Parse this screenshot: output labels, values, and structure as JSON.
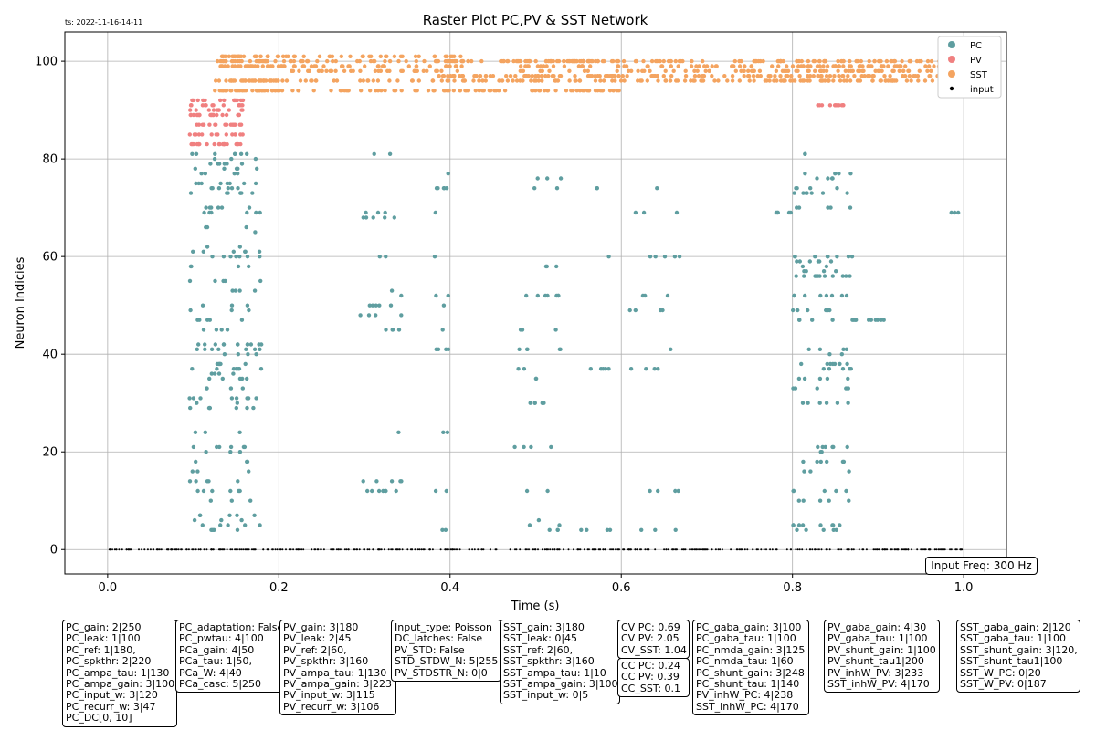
{
  "timestamp": "ts: 2022-11-16-14-11",
  "input_freq": "Input Freq: 300 Hz",
  "param_boxes": [
    [
      "PC_gain: 2|250",
      "PC_leak: 1|100",
      "PC_ref: 1|180,",
      "PC_spkthr: 2|220",
      "PC_ampa_tau: 1|130",
      "PC_ampa_gain: 3|100",
      "PC_input_w: 3|120",
      "PC_recurr_w: 3|47",
      "PC_DC[0, 10]"
    ],
    [
      "PC_adaptation: False",
      "PC_pwtau: 4|100",
      "PCa_gain: 4|50",
      "PCa_tau: 1|50,",
      "PCa_W: 4|40",
      "PCa_casc: 5|250"
    ],
    [
      "PV_gain: 3|180",
      "PV_leak: 2|45",
      "PV_ref: 2|60,",
      "PV_spkthr: 3|160",
      "PV_ampa_tau: 1|130",
      "PV_ampa_gain: 3|223",
      "PV_input_w: 3|115",
      "PV_recurr_w: 3|106"
    ],
    [
      "Input_type: Poisson",
      "DC_latches: False",
      "PV_STD: False",
      "STD_STDW_N: 5|255",
      "PV_STDSTR_N: 0|0"
    ],
    [
      "SST_gain: 3|180",
      "SST_leak: 0|45",
      "SST_ref: 2|60,",
      "SST_spkthr: 3|160",
      "SST_ampa_tau: 1|10",
      "SST_ampa_gain: 3|100",
      "SST_input_w: 0|5"
    ],
    [
      "CV PC: 0.69",
      "CV PV: 2.05",
      "CV_SST: 1.04"
    ],
    [
      "CC PC: 0.24",
      "CC PV: 0.39",
      "CC_SST: 0.1"
    ],
    [
      "PC_gaba_gain: 3|100",
      "PC_gaba_tau: 1|100",
      "PC_nmda_gain: 3|125",
      "PC_nmda_tau: 1|60",
      "PC_shunt_gain: 3|248",
      "PC_shunt_tau: 1|140",
      "PV_inhW_PC: 4|238",
      "SST_inhW_PC: 4|170"
    ],
    [
      "PV_gaba_gain: 4|30",
      "PV_gaba_tau: 1|100",
      "PV_shunt_gain: 1|100",
      "PV_shunt_tau1|200",
      "PV_inhW_PV: 3|233",
      "SST_inhW_PV: 4|170"
    ],
    [
      "SST_gaba_gain: 2|120",
      "SST_gaba_tau: 1|100",
      "SST_shunt_gain: 3|120,",
      "SST_shunt_tau1|100",
      "SST_W_PC: 0|20",
      "SST_W_PV: 0|187"
    ]
  ],
  "chart_data": {
    "type": "scatter",
    "title": "Raster Plot PC,PV & SST Network",
    "xlabel": "Time (s)",
    "ylabel": "Neuron Indicies",
    "xlim": [
      -0.05,
      1.05
    ],
    "ylim": [
      -5,
      106
    ],
    "xticks": [
      0.0,
      0.2,
      0.4,
      0.6,
      0.8,
      1.0
    ],
    "xtick_labels": [
      "0.0",
      "0.2",
      "0.4",
      "0.6",
      "0.8",
      "1.0"
    ],
    "yticks": [
      0,
      20,
      40,
      60,
      80,
      100
    ],
    "ytick_labels": [
      "0",
      "20",
      "40",
      "60",
      "80",
      "100"
    ],
    "grid": true,
    "legend_position": "top-right",
    "colors": {
      "PC": "#5f9ea0",
      "PV": "#f08080",
      "SST": "#f4a460",
      "input": "#000000"
    },
    "series": [
      {
        "name": "PC",
        "marker_size": 2.2,
        "bursts": [
          {
            "t": [
              0.095,
              0.18
            ],
            "n": 220,
            "rows": [
              4,
              5,
              6,
              7,
              10,
              12,
              14,
              16,
              18,
              20,
              21,
              24,
              29,
              30,
              31,
              33,
              35,
              36,
              37,
              38,
              40,
              41,
              42,
              45,
              47,
              49,
              50,
              51,
              53,
              55,
              58,
              60,
              61,
              62,
              65,
              66,
              69,
              70,
              73,
              74,
              75,
              77,
              78,
              79,
              80,
              81
            ]
          },
          {
            "t": [
              0.295,
              0.345
            ],
            "n": 40,
            "rows": [
              12,
              14,
              24,
              45,
              48,
              50,
              52,
              53,
              60,
              68,
              69,
              81
            ]
          },
          {
            "t": [
              0.38,
              0.4
            ],
            "n": 22,
            "rows": [
              4,
              12,
              24,
              41,
              45,
              50,
              52,
              60,
              69,
              74,
              77
            ]
          },
          {
            "t": [
              0.475,
              0.53
            ],
            "n": 45,
            "rows": [
              4,
              5,
              6,
              12,
              21,
              30,
              35,
              37,
              41,
              45,
              52,
              58,
              74,
              76
            ]
          },
          {
            "t": [
              0.55,
              0.59
            ],
            "n": 12,
            "rows": [
              4,
              37,
              60,
              74
            ]
          },
          {
            "t": [
              0.61,
              0.67
            ],
            "n": 28,
            "rows": [
              4,
              12,
              37,
              41,
              49,
              52,
              60,
              69,
              74
            ]
          },
          {
            "t": [
              0.78,
              0.81
            ],
            "n": 5,
            "rows": [
              69
            ]
          },
          {
            "t": [
              0.8,
              0.87
            ],
            "n": 150,
            "rows": [
              4,
              5,
              10,
              12,
              16,
              18,
              20,
              21,
              30,
              33,
              35,
              37,
              38,
              40,
              41,
              47,
              49,
              52,
              56,
              57,
              58,
              59,
              60,
              70,
              73,
              74,
              76,
              77,
              81
            ]
          },
          {
            "t": [
              0.87,
              0.92
            ],
            "n": 10,
            "rows": [
              47
            ]
          },
          {
            "t": [
              0.98,
              1.0
            ],
            "n": 3,
            "rows": [
              69
            ]
          }
        ]
      },
      {
        "name": "PV",
        "marker_size": 2.2,
        "bursts": [
          {
            "t": [
              0.095,
              0.16
            ],
            "n": 110,
            "rows": [
              83,
              85,
              87,
              89,
              90,
              91,
              92
            ]
          },
          {
            "t": [
              0.825,
              0.86
            ],
            "n": 12,
            "rows": [
              91
            ]
          }
        ]
      },
      {
        "name": "SST",
        "marker_size": 2.2,
        "bursts": [
          {
            "t": [
              0.125,
              0.2
            ],
            "n": 150,
            "rows": [
              94,
              96,
              99,
              100,
              101
            ]
          },
          {
            "t": [
              0.2,
              0.42
            ],
            "n": 190,
            "rows": [
              94,
              96,
              98,
              99,
              100,
              101
            ]
          },
          {
            "t": [
              0.38,
              0.6
            ],
            "n": 170,
            "rows": [
              94,
              96,
              97,
              100
            ]
          },
          {
            "t": [
              0.48,
              0.8
            ],
            "n": 230,
            "rows": [
              96,
              97,
              98,
              99,
              100
            ]
          },
          {
            "t": [
              0.8,
              1.0
            ],
            "n": 220,
            "rows": [
              96,
              97,
              98,
              99,
              100
            ]
          }
        ]
      },
      {
        "name": "input",
        "marker_size": 1.0,
        "bursts": [
          {
            "t": [
              0.0,
              1.0
            ],
            "n": 420,
            "rows": [
              0
            ]
          }
        ]
      }
    ]
  }
}
